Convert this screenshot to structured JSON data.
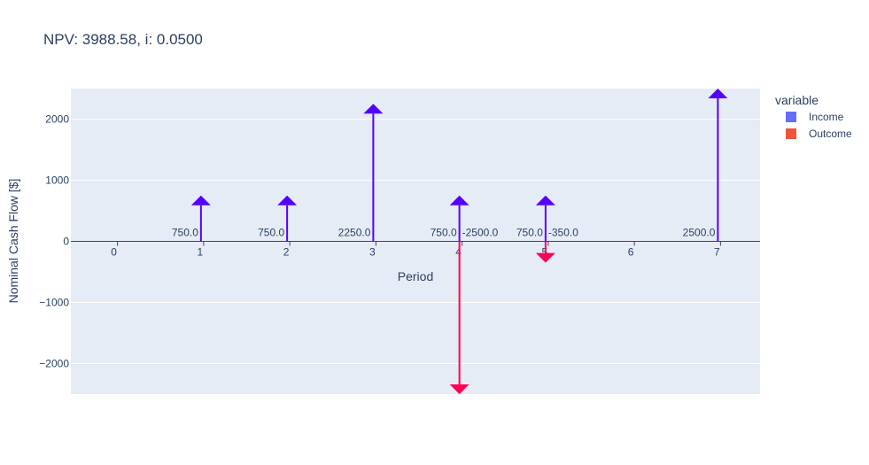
{
  "chart_data": {
    "type": "bar",
    "title": "NPV:  3988.58, i:  0.0500",
    "xlabel": "Period",
    "ylabel": "Nominal Cash Flow [$]",
    "xlim": [
      -0.5,
      7.5
    ],
    "ylim": [
      -2500,
      2500
    ],
    "x_ticks": [
      0,
      1,
      2,
      3,
      4,
      5,
      6,
      7
    ],
    "y_ticks": [
      -2000,
      -1000,
      0,
      1000,
      2000
    ],
    "y_tick_labels": [
      "−2000",
      "−1000",
      "0",
      "1000",
      "2000"
    ],
    "grid": true,
    "legend": {
      "title": "variable",
      "position": "right"
    },
    "series": [
      {
        "name": "Income",
        "color": "#5500ff",
        "legend_color": "#636efa",
        "points": [
          {
            "x": 1,
            "y": 750,
            "label": "750.0"
          },
          {
            "x": 2,
            "y": 750,
            "label": "750.0"
          },
          {
            "x": 3,
            "y": 2250,
            "label": "2250.0"
          },
          {
            "x": 4,
            "y": 750,
            "label": "750.0"
          },
          {
            "x": 5,
            "y": 750,
            "label": "750.0"
          },
          {
            "x": 7,
            "y": 2500,
            "label": "2500.0"
          }
        ]
      },
      {
        "name": "Outcome",
        "color": "#ff0055",
        "legend_color": "#ef553b",
        "points": [
          {
            "x": 4,
            "y": -2500,
            "label": "-2500.0"
          },
          {
            "x": 5,
            "y": -350,
            "label": "-350.0"
          }
        ]
      }
    ]
  }
}
